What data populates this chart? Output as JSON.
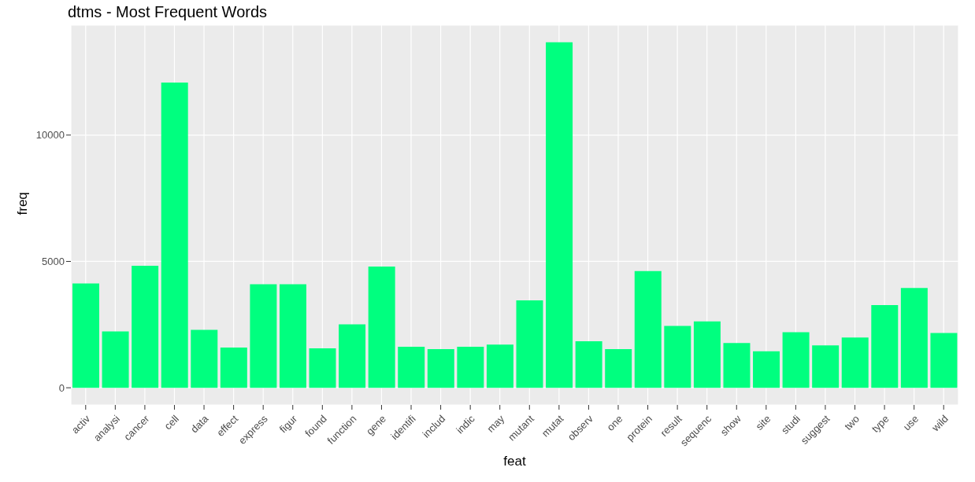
{
  "chart_data": {
    "type": "bar",
    "title": "dtms - Most Frequent Words",
    "xlabel": "feat",
    "ylabel": "freq",
    "categories": [
      "activ",
      "analysi",
      "cancer",
      "cell",
      "data",
      "effect",
      "express",
      "figur",
      "found",
      "function",
      "gene",
      "identifi",
      "includ",
      "indic",
      "may",
      "mutant",
      "mutat",
      "observ",
      "one",
      "protein",
      "result",
      "sequenc",
      "show",
      "site",
      "studi",
      "suggest",
      "two",
      "type",
      "use",
      "wild"
    ],
    "values": [
      4130,
      2230,
      4830,
      12080,
      2290,
      1590,
      4100,
      4100,
      1560,
      2510,
      4800,
      1620,
      1530,
      1620,
      1710,
      3460,
      13670,
      1840,
      1530,
      4620,
      2450,
      2630,
      1770,
      1440,
      2200,
      1680,
      1990,
      3270,
      3950,
      2170
    ],
    "color": "#00ff7f",
    "ylim": [
      -680,
      14350
    ],
    "yticks": [
      0,
      5000,
      10000
    ],
    "grid": true
  }
}
